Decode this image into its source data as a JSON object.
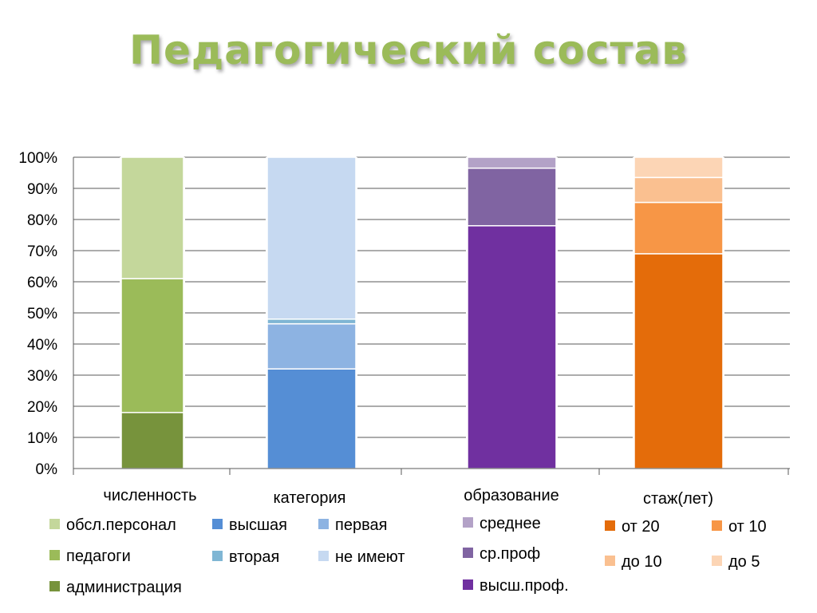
{
  "chart_data": {
    "type": "bar",
    "stacked": true,
    "percent": true,
    "title": "Педагогический состав",
    "ylim": [
      0,
      100
    ],
    "yticks": [
      "0%",
      "10%",
      "20%",
      "30%",
      "40%",
      "50%",
      "60%",
      "70%",
      "80%",
      "90%",
      "100%"
    ],
    "grid": true,
    "categories": [
      "численность",
      "категория",
      "образование",
      "стаж(лет)"
    ],
    "groups": [
      {
        "category": "численность",
        "series": [
          {
            "name": "администрация",
            "value": 18,
            "color": "#77933C"
          },
          {
            "name": "педагоги",
            "value": 43,
            "color": "#9BBB59"
          },
          {
            "name": "обсл.персонал",
            "value": 39,
            "color": "#C4D79B"
          }
        ]
      },
      {
        "category": "категория",
        "series": [
          {
            "name": "высшая",
            "value": 32,
            "color": "#558ED5"
          },
          {
            "name": "первая",
            "value": 14.5,
            "color": "#8DB3E2"
          },
          {
            "name": "вторая",
            "value": 1.5,
            "color": "#7FB6D4"
          },
          {
            "name": "не имеют",
            "value": 52,
            "color": "#C6D9F1"
          }
        ]
      },
      {
        "category": "образование",
        "series": [
          {
            "name": "высш.проф.",
            "value": 78,
            "color": "#7030A0"
          },
          {
            "name": "ср.проф",
            "value": 18.5,
            "color": "#8064A2"
          },
          {
            "name": "среднее",
            "value": 3.5,
            "color": "#B3A2C7"
          }
        ]
      },
      {
        "category": "стаж(лет)",
        "series": [
          {
            "name": "от 20",
            "value": 69,
            "color": "#E46C0A"
          },
          {
            "name": "от 10",
            "value": 16.5,
            "color": "#F79646"
          },
          {
            "name": "до 10",
            "value": 8,
            "color": "#FAC090"
          },
          {
            "name": "до 5",
            "value": 6.5,
            "color": "#FCD5B5"
          }
        ]
      }
    ],
    "legend": [
      [
        "обсл.персонал",
        "#C4D79B"
      ],
      [
        "педагоги",
        "#9BBB59"
      ],
      [
        "администрация",
        "#77933C"
      ],
      [
        "высшая",
        "#558ED5"
      ],
      [
        "вторая",
        "#7FB6D4"
      ],
      [
        "первая",
        "#8DB3E2"
      ],
      [
        "не имеют",
        "#C6D9F1"
      ],
      [
        "среднее",
        "#B3A2C7"
      ],
      [
        "ср.проф",
        "#8064A2"
      ],
      [
        "высш.проф.",
        "#7030A0"
      ],
      [
        "от 20",
        "#E46C0A"
      ],
      [
        "до 10",
        "#FAC090"
      ],
      [
        "от 10",
        "#F79646"
      ],
      [
        "до 5",
        "#FCD5B5"
      ]
    ]
  }
}
